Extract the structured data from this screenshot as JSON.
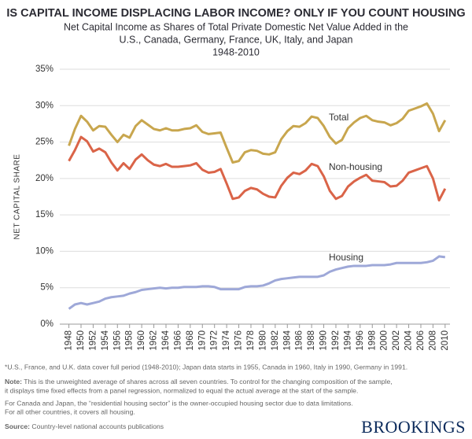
{
  "chart_data": {
    "type": "line",
    "title": "IS CAPITAL INCOME DISPLACING LABOR INCOME? ONLY IF YOU COUNT HOUSING",
    "subtitle": [
      "Net Capital Income as Shares of Total Private Domestic Net Value Added in the",
      "U.S., Canada, Germany, France, UK, Italy, and Japan",
      "1948-2010"
    ],
    "y_label": "NET CAPITAL SHARE",
    "x": [
      1948,
      1949,
      1950,
      1951,
      1952,
      1953,
      1954,
      1955,
      1956,
      1957,
      1958,
      1959,
      1960,
      1961,
      1962,
      1963,
      1964,
      1965,
      1966,
      1967,
      1968,
      1969,
      1970,
      1971,
      1972,
      1973,
      1974,
      1975,
      1976,
      1977,
      1978,
      1979,
      1980,
      1981,
      1982,
      1983,
      1984,
      1985,
      1986,
      1987,
      1988,
      1989,
      1990,
      1991,
      1992,
      1993,
      1994,
      1995,
      1996,
      1997,
      1998,
      1999,
      2000,
      2001,
      2002,
      2003,
      2004,
      2005,
      2006,
      2007,
      2008,
      2009,
      2010
    ],
    "series": [
      {
        "name": "Total",
        "color": "#c8a64e",
        "values": [
          24.5,
          26.8,
          28.6,
          27.8,
          26.6,
          27.2,
          27.1,
          26.0,
          25.0,
          26.0,
          25.6,
          27.2,
          28.0,
          27.4,
          26.8,
          26.6,
          26.9,
          26.6,
          26.6,
          26.8,
          26.9,
          27.3,
          26.4,
          26.1,
          26.2,
          26.3,
          24.2,
          22.2,
          22.4,
          23.6,
          23.9,
          23.8,
          23.4,
          23.3,
          23.6,
          25.4,
          26.5,
          27.2,
          27.1,
          27.6,
          28.5,
          28.3,
          27.2,
          25.7,
          24.8,
          25.3,
          26.9,
          27.7,
          28.3,
          28.6,
          28.0,
          27.8,
          27.7,
          27.3,
          27.6,
          28.2,
          29.3,
          29.6,
          29.9,
          30.3,
          28.9,
          26.5,
          28.0
        ]
      },
      {
        "name": "Non-housing",
        "color": "#da6448",
        "values": [
          22.4,
          23.9,
          25.7,
          25.1,
          23.7,
          24.1,
          23.6,
          22.2,
          21.1,
          22.1,
          21.3,
          22.6,
          23.3,
          22.5,
          21.9,
          21.7,
          22.0,
          21.6,
          21.6,
          21.7,
          21.8,
          22.1,
          21.2,
          20.8,
          20.9,
          21.3,
          19.3,
          17.2,
          17.4,
          18.3,
          18.7,
          18.5,
          17.9,
          17.5,
          17.4,
          19.0,
          20.1,
          20.8,
          20.6,
          21.1,
          22.0,
          21.7,
          20.3,
          18.3,
          17.2,
          17.6,
          18.9,
          19.6,
          20.1,
          20.5,
          19.7,
          19.6,
          19.5,
          18.9,
          19.0,
          19.7,
          20.8,
          21.1,
          21.4,
          21.7,
          20.0,
          17.0,
          18.6
        ]
      },
      {
        "name": "Housing",
        "color": "#9ea8d8",
        "values": [
          2.1,
          2.7,
          2.9,
          2.7,
          2.9,
          3.1,
          3.5,
          3.7,
          3.8,
          3.9,
          4.2,
          4.4,
          4.7,
          4.8,
          4.9,
          5.0,
          4.9,
          5.0,
          5.0,
          5.1,
          5.1,
          5.1,
          5.2,
          5.2,
          5.1,
          4.8,
          4.8,
          4.8,
          4.8,
          5.1,
          5.2,
          5.2,
          5.3,
          5.6,
          6.0,
          6.2,
          6.3,
          6.4,
          6.5,
          6.5,
          6.5,
          6.5,
          6.7,
          7.2,
          7.5,
          7.7,
          7.9,
          8.0,
          8.0,
          8.0,
          8.1,
          8.1,
          8.1,
          8.2,
          8.4,
          8.4,
          8.4,
          8.4,
          8.4,
          8.5,
          8.7,
          9.3,
          9.2
        ]
      }
    ],
    "xlim": [
      1946.5,
      2010.8
    ],
    "xticks": [
      1948,
      1950,
      1952,
      1954,
      1956,
      1958,
      1960,
      1962,
      1964,
      1966,
      1968,
      1970,
      1972,
      1974,
      1976,
      1978,
      1980,
      1982,
      1984,
      1986,
      1988,
      1990,
      1992,
      1994,
      1996,
      1998,
      2000,
      2002,
      2004,
      2006,
      2008,
      2010
    ],
    "ylim": [
      0,
      35
    ],
    "yticks": [
      {
        "value": 0,
        "label": "0%"
      },
      {
        "value": 5,
        "label": "5%"
      },
      {
        "value": 10,
        "label": "10%"
      },
      {
        "value": 15,
        "label": "15%"
      },
      {
        "value": 20,
        "label": "20%"
      },
      {
        "value": 25,
        "label": "25%"
      },
      {
        "value": 30,
        "label": "30%"
      },
      {
        "value": 35,
        "label": "35%"
      }
    ],
    "grid": true,
    "footnote": "*U.S., France, and U.K. data cover full period (1948-2010); Japan data starts in 1955, Canada in 1960, Italy in 1990, Germany in 1991.",
    "note": {
      "label": "Note:",
      "lines": [
        "This is the unweighted average of shares across all seven countries. To control for the changing composition of the sample,",
        "it displays time fixed effects from a panel regression, normalized to equal the actual average at the start of the sample."
      ]
    },
    "note2": [
      "For Canada and Japan, the “residential housing sector” is the owner-occupied housing sector due to data limitations.",
      "For all other countries, it covers all housing."
    ],
    "source": {
      "label": "Source:",
      "text": "Country-level national accounts publications"
    },
    "brand": "BROOKINGS"
  }
}
